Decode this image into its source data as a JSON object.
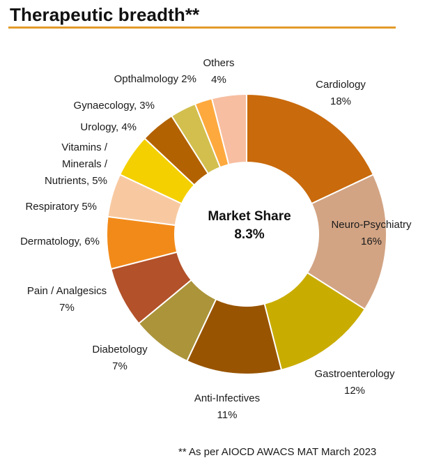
{
  "chart_data": {
    "type": "pie",
    "variant": "donut",
    "title": "Therapeutic breadth**",
    "center_label": {
      "line1": "Market Share",
      "line2": "8.3%"
    },
    "categories": [
      "Cardiology",
      "Neuro-Psychiatry",
      "Gastroenterology",
      "Anti-Infectives",
      "Diabetology",
      "Pain / Analgesics",
      "Dermatology",
      "Respiratory",
      "Vitamins / Minerals / Nutrients",
      "Urology",
      "Gynaecology",
      "Opthalmology",
      "Others"
    ],
    "values": [
      18,
      16,
      12,
      11,
      7,
      7,
      6,
      5,
      5,
      4,
      3,
      2,
      4
    ],
    "unit": "%",
    "colors": [
      "#C96A0C",
      "#D2A484",
      "#C9AC00",
      "#985401",
      "#AB943A",
      "#B2512A",
      "#F28A1A",
      "#F8C9A1",
      "#F4D000",
      "#B26200",
      "#D2BF4E",
      "#FEA93E",
      "#F7BEA1"
    ],
    "slice_labels": [
      [
        "Cardiology",
        "18%"
      ],
      [
        "Neuro-Psychiatry",
        "16%"
      ],
      [
        "Gastroenterology",
        "12%"
      ],
      [
        "Anti-Infectives",
        "11%"
      ],
      [
        "Diabetology",
        "7%"
      ],
      [
        "Pain / Analgesics",
        "7%"
      ],
      [
        "Dermatology, 6%"
      ],
      [
        "Respiratory 5%"
      ],
      [
        "Vitamins /",
        "Minerals /",
        "Nutrients, 5%"
      ],
      [
        "Urology, 4%"
      ],
      [
        "Gynaecology, 3%"
      ],
      [
        "Opthalmology 2%"
      ],
      [
        "Others",
        "4%"
      ]
    ],
    "footnote": "** As per AIOCD AWACS MAT March 2023"
  },
  "theme": {
    "title_rule_color": "#E39A2A",
    "separator_color": "#ffffff"
  }
}
